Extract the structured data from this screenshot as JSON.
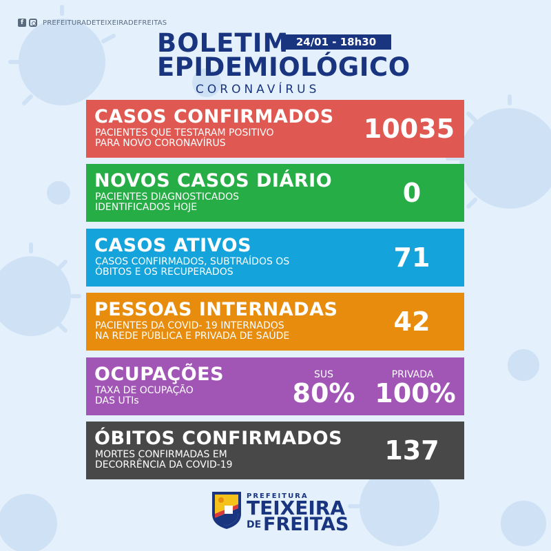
{
  "social": {
    "handle": "PREFEITURADETEIXEIRADEFREITAS",
    "icons": [
      "facebook-icon",
      "instagram-icon"
    ]
  },
  "header": {
    "title_line1": "BOLETIM",
    "title_line2": "EPIDEMIOLÓGICO",
    "subtitle": "CORONAVÍRUS",
    "date": "24/01 - 18h30"
  },
  "cards": {
    "confirmed": {
      "title": "CASOS CONFIRMADOS",
      "desc_line1": "PACIENTES QUE TESTARAM POSITIVO",
      "desc_line2": "PARA NOVO CORONAVÍRUS",
      "value": "10035",
      "color": "#e05852"
    },
    "daily": {
      "title": "NOVOS CASOS DIÁRIO",
      "desc_line1": "PACIENTES DIAGNOSTICADOS",
      "desc_line2": "IDENTIFICADOS HOJE",
      "value": "0",
      "color": "#26ad46"
    },
    "active": {
      "title": "CASOS ATIVOS",
      "desc_line1": "CASOS CONFIRMADOS, SUBTRAÍDOS OS",
      "desc_line2": "ÓBITOS E OS RECUPERADOS",
      "value": "71",
      "color": "#14a3da"
    },
    "hospitalized": {
      "title": "PESSOAS INTERNADAS",
      "desc_line1": "PACIENTES DA COVID- 19 INTERNADOS",
      "desc_line2": "NA REDE PÚBLICA E PRIVADA DE SAÚDE",
      "value": "42",
      "color": "#e88c0e"
    },
    "occupancy": {
      "title": "OCUPAÇÕES",
      "desc_line1": "TAXA DE OCUPAÇÃO",
      "desc_line2": "DAS UTIs",
      "sus_label": "SUS",
      "sus_value": "80%",
      "private_label": "PRIVADA",
      "private_value": "100%",
      "color": "#a156b6"
    },
    "deaths": {
      "title": "ÓBITOS CONFIRMADOS",
      "desc_line1": "MORTES CONFIRMADAS EM",
      "desc_line2": "DECORRÊNCIA DA COVID-19",
      "value": "137",
      "color": "#484848"
    }
  },
  "logo": {
    "top": "PREFEITURA",
    "main": "TEIXEIRA",
    "de": "DE",
    "bottom": "FREITAS"
  },
  "colors": {
    "brand": "#1a3580",
    "background": "#e4f0fb"
  }
}
